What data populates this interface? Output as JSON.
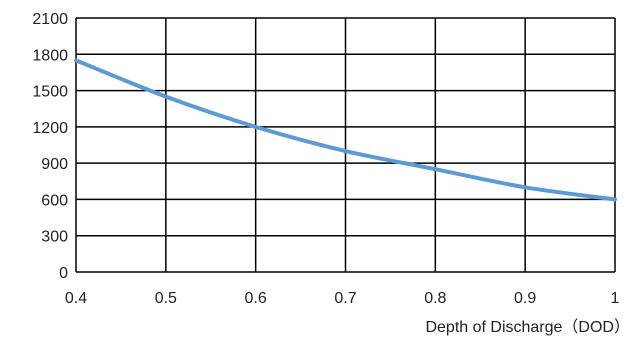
{
  "chart_data": {
    "type": "line",
    "xlabel": "Depth of Discharge（DOD）",
    "ylabel": "",
    "xlim": [
      0.4,
      1.0
    ],
    "ylim": [
      0,
      2100
    ],
    "x_ticks": [
      0.4,
      0.5,
      0.6,
      0.7,
      0.8,
      0.9,
      1.0
    ],
    "y_ticks": [
      0,
      300,
      600,
      900,
      1200,
      1500,
      1800,
      2100
    ],
    "x_tick_labels": [
      "0.4",
      "0.5",
      "0.6",
      "0.7",
      "0.8",
      "0.9",
      "1"
    ],
    "y_tick_labels": [
      "0",
      "300",
      "600",
      "900",
      "1200",
      "1500",
      "1800",
      "2100"
    ],
    "grid": true,
    "series": [
      {
        "x": [
          0.4,
          0.5,
          0.6,
          0.7,
          0.8,
          0.9,
          1.0
        ],
        "y": [
          1750,
          1450,
          1200,
          1000,
          850,
          700,
          600
        ],
        "color": "#5B9BD5"
      }
    ]
  }
}
